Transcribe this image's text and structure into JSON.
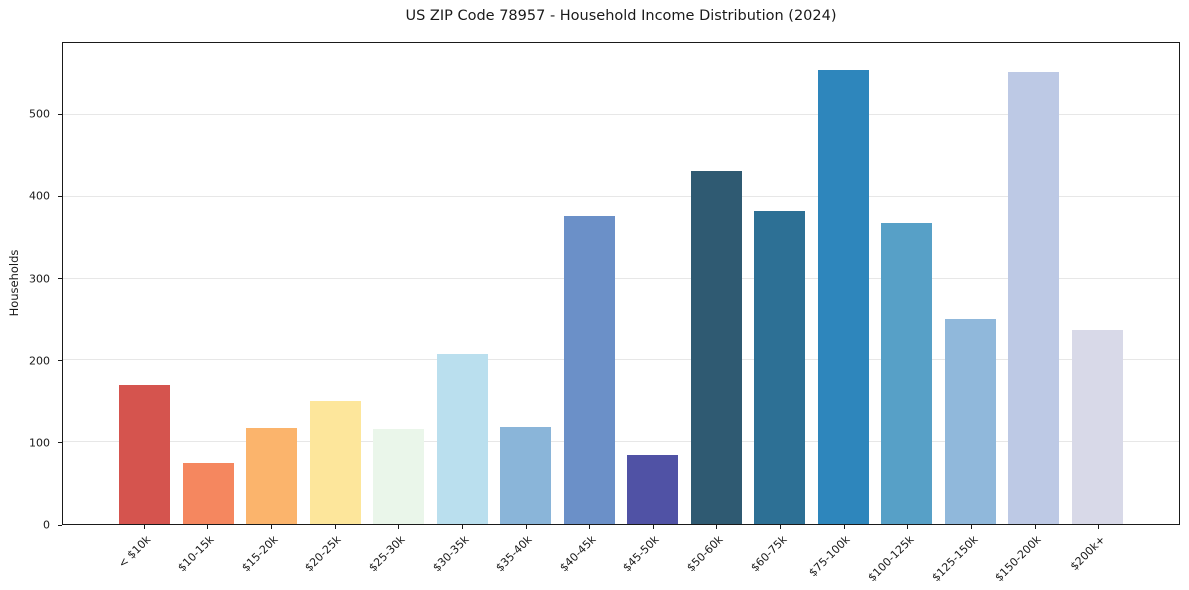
{
  "chart_data": {
    "type": "bar",
    "title": "US ZIP Code 78957 - Household Income Distribution (2024)",
    "ylabel": "Households",
    "xlabel": "",
    "categories": [
      "< $10k",
      "$10-15k",
      "$15-20k",
      "$20-25k",
      "$25-30k",
      "$30-35k",
      "$35-40k",
      "$40-45k",
      "$45-50k",
      "$50-60k",
      "$60-75k",
      "$75-100k",
      "$100-125k",
      "$125-150k",
      "$150-200k",
      "$200k+"
    ],
    "values": [
      170,
      75,
      117,
      150,
      116,
      208,
      119,
      377,
      84,
      431,
      383,
      555,
      368,
      251,
      552,
      237
    ],
    "bar_colors": [
      "#d5544e",
      "#f5875f",
      "#fbb46c",
      "#fde69b",
      "#eaf6ea",
      "#badfee",
      "#8ab5d9",
      "#6b90c8",
      "#5052a5",
      "#2f5a72",
      "#2d7095",
      "#2e86bc",
      "#57a0c7",
      "#90b8db",
      "#bdc9e5",
      "#d8d9e8"
    ],
    "ylim": [
      0,
      588
    ],
    "yticks": [
      0,
      100,
      200,
      300,
      400,
      500
    ],
    "grid": true,
    "gridline_color": "#e7e7e7",
    "background": "#ffffff",
    "legend_position": "none"
  }
}
